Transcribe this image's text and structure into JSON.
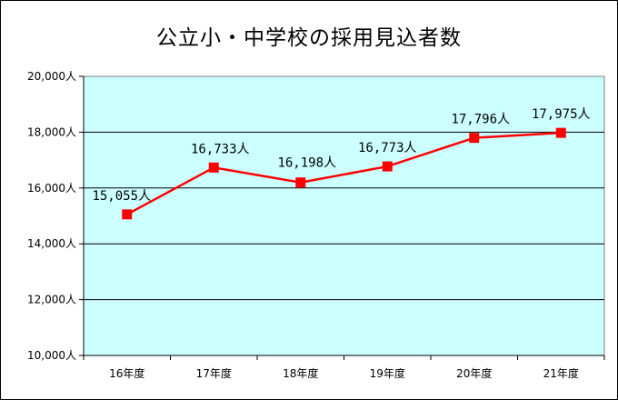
{
  "chart_data": {
    "type": "line",
    "title": "公立小・中学校の採用見込者数",
    "xlabel": "",
    "ylabel": "",
    "categories": [
      "16年度",
      "17年度",
      "18年度",
      "19年度",
      "20年度",
      "21年度"
    ],
    "series": [
      {
        "values": [
          15055,
          16733,
          16198,
          16773,
          17796,
          17975
        ],
        "color": "#ff0000",
        "marker": "square"
      }
    ],
    "data_labels": [
      "15,055人",
      "16,733人",
      "16,198人",
      "16,773人",
      "17,796人",
      "17,975人"
    ],
    "y_tick_labels": [
      "10,000人",
      "12,000人",
      "14,000人",
      "16,000人",
      "18,000人",
      "20,000人"
    ],
    "y_ticks": [
      10000,
      12000,
      14000,
      16000,
      18000,
      20000
    ],
    "ylim": [
      10000,
      20000
    ],
    "grid": true,
    "plot_background": "#ccffff"
  }
}
